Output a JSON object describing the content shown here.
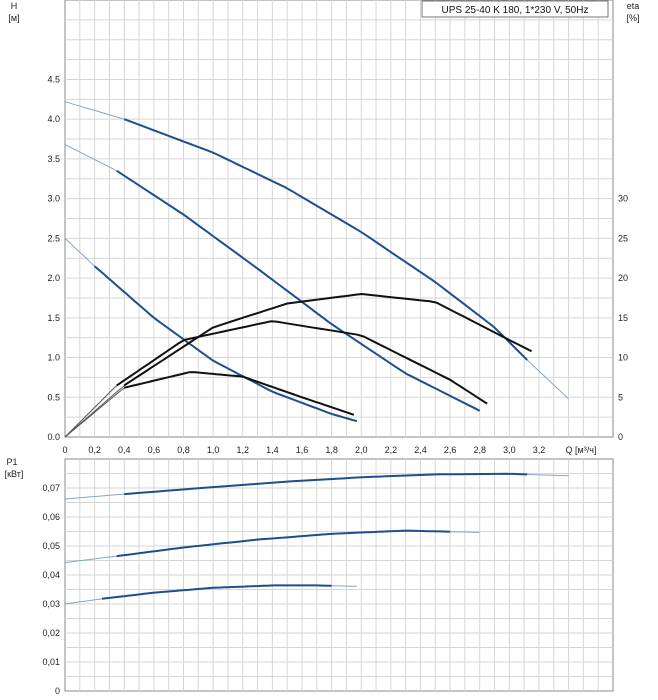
{
  "legend": {
    "text": "UPS 25-40 K 180, 1*230 V, 50Hz"
  },
  "chart_data": [
    {
      "type": "line",
      "xlabel": "Q [м³/ч]",
      "ylabel": "H",
      "ylabel_unit": "[м]",
      "y2label": "eta",
      "y2label_unit": "[%]",
      "xlim": [
        0,
        3.7
      ],
      "ylim": [
        0,
        5.5
      ],
      "y2lim": [
        0,
        55
      ],
      "grid": true,
      "legend_position": "top-right",
      "x_ticks": [
        {
          "v": 0,
          "t": "0"
        },
        {
          "v": 0.2,
          "t": "0,2"
        },
        {
          "v": 0.4,
          "t": "0,4"
        },
        {
          "v": 0.6,
          "t": "0,6"
        },
        {
          "v": 0.8,
          "t": "0,8"
        },
        {
          "v": 1.0,
          "t": "1,0"
        },
        {
          "v": 1.2,
          "t": "1,2"
        },
        {
          "v": 1.4,
          "t": "1,4"
        },
        {
          "v": 1.6,
          "t": "1,6"
        },
        {
          "v": 1.8,
          "t": "1,8"
        },
        {
          "v": 2.0,
          "t": "2,0"
        },
        {
          "v": 2.2,
          "t": "2,2"
        },
        {
          "v": 2.4,
          "t": "2,4"
        },
        {
          "v": 2.6,
          "t": "2,6"
        },
        {
          "v": 2.8,
          "t": "2,8"
        },
        {
          "v": 3.0,
          "t": "3,0"
        },
        {
          "v": 3.2,
          "t": "3,2"
        }
      ],
      "y_ticks": [
        {
          "v": 0,
          "t": "0.0"
        },
        {
          "v": 0.5,
          "t": "0.5"
        },
        {
          "v": 1.0,
          "t": "1.0"
        },
        {
          "v": 1.5,
          "t": "1.5"
        },
        {
          "v": 2.0,
          "t": "2.0"
        },
        {
          "v": 2.5,
          "t": "2.5"
        },
        {
          "v": 3.0,
          "t": "3.0"
        },
        {
          "v": 3.5,
          "t": "3.5"
        },
        {
          "v": 4.0,
          "t": "4.0"
        },
        {
          "v": 4.5,
          "t": "4.5"
        }
      ],
      "y2_ticks": [
        {
          "v": 0,
          "t": "0"
        },
        {
          "v": 5,
          "t": "5"
        },
        {
          "v": 10,
          "t": "10"
        },
        {
          "v": 15,
          "t": "15"
        },
        {
          "v": 20,
          "t": "20"
        },
        {
          "v": 25,
          "t": "25"
        },
        {
          "v": 30,
          "t": "30"
        }
      ],
      "series": [
        {
          "kind": "head",
          "axis": "y",
          "color": "#1d4f8a",
          "x": [
            0,
            0.4,
            1.0,
            1.5,
            2.0,
            2.5,
            2.9,
            3.12,
            3.4
          ],
          "y": [
            4.22,
            4.0,
            3.58,
            3.13,
            2.58,
            1.95,
            1.38,
            0.97,
            0.48
          ],
          "op_range": [
            0.4,
            3.12
          ]
        },
        {
          "kind": "head",
          "axis": "y",
          "color": "#1d4f8a",
          "x": [
            0,
            0.35,
            0.8,
            1.3,
            1.8,
            2.3,
            2.8
          ],
          "y": [
            3.68,
            3.35,
            2.8,
            2.12,
            1.42,
            0.8,
            0.33
          ],
          "op_range": [
            0.35,
            2.8
          ]
        },
        {
          "kind": "head",
          "axis": "y",
          "color": "#1d4f8a",
          "x": [
            0,
            0.2,
            0.6,
            1.0,
            1.4,
            1.8,
            1.97
          ],
          "y": [
            2.5,
            2.15,
            1.5,
            0.96,
            0.57,
            0.29,
            0.2
          ],
          "op_range": [
            0.2,
            1.97
          ]
        },
        {
          "kind": "eta",
          "axis": "y2",
          "color": "#111111",
          "x": [
            0,
            0.4,
            1.0,
            1.5,
            2.0,
            2.5,
            3.0,
            3.15
          ],
          "y": [
            0,
            6.5,
            13.8,
            16.8,
            18.0,
            17.0,
            12.2,
            10.8
          ],
          "op_range": [
            0.4,
            3.15
          ]
        },
        {
          "kind": "eta",
          "axis": "y2",
          "color": "#111111",
          "x": [
            0,
            0.35,
            0.8,
            1.4,
            2.0,
            2.6,
            2.85
          ],
          "y": [
            0,
            6.5,
            12.2,
            14.6,
            12.8,
            7.2,
            4.2
          ],
          "op_range": [
            0.35,
            2.85
          ]
        },
        {
          "kind": "eta",
          "axis": "y2",
          "color": "#111111",
          "x": [
            0,
            0.4,
            0.85,
            1.2,
            1.6,
            1.95
          ],
          "y": [
            0,
            6.2,
            8.2,
            7.6,
            5.0,
            2.8
          ],
          "op_range": [
            0.4,
            1.95
          ]
        }
      ]
    },
    {
      "type": "line",
      "ylabel": "P1",
      "ylabel_unit": "[кВт]",
      "xlim": [
        0,
        3.7
      ],
      "ylim": [
        0,
        0.08
      ],
      "grid": true,
      "y_ticks": [
        {
          "v": 0,
          "t": "0"
        },
        {
          "v": 0.01,
          "t": "0,01"
        },
        {
          "v": 0.02,
          "t": "0,02"
        },
        {
          "v": 0.03,
          "t": "0,03"
        },
        {
          "v": 0.04,
          "t": "0,04"
        },
        {
          "v": 0.05,
          "t": "0,05"
        },
        {
          "v": 0.06,
          "t": "0,06"
        },
        {
          "v": 0.07,
          "t": "0,07"
        }
      ],
      "series": [
        {
          "kind": "power",
          "color": "#1d4f8a",
          "x": [
            0,
            0.4,
            1.0,
            1.5,
            2.0,
            2.5,
            3.0,
            3.4
          ],
          "y": [
            0.0662,
            0.0679,
            0.0703,
            0.0722,
            0.0737,
            0.0747,
            0.0749,
            0.0742
          ],
          "op_range": [
            0.4,
            3.12
          ]
        },
        {
          "kind": "power",
          "color": "#1d4f8a",
          "x": [
            0,
            0.35,
            0.8,
            1.3,
            1.8,
            2.3,
            2.8
          ],
          "y": [
            0.0443,
            0.0465,
            0.0495,
            0.0522,
            0.0542,
            0.0553,
            0.0547
          ],
          "op_range": [
            0.35,
            2.6
          ]
        },
        {
          "kind": "power",
          "color": "#1d4f8a",
          "x": [
            0,
            0.25,
            0.6,
            1.0,
            1.4,
            1.7,
            1.97
          ],
          "y": [
            0.03,
            0.0318,
            0.0339,
            0.0356,
            0.0364,
            0.0364,
            0.0361
          ],
          "op_range": [
            0.25,
            1.8
          ]
        }
      ]
    }
  ]
}
